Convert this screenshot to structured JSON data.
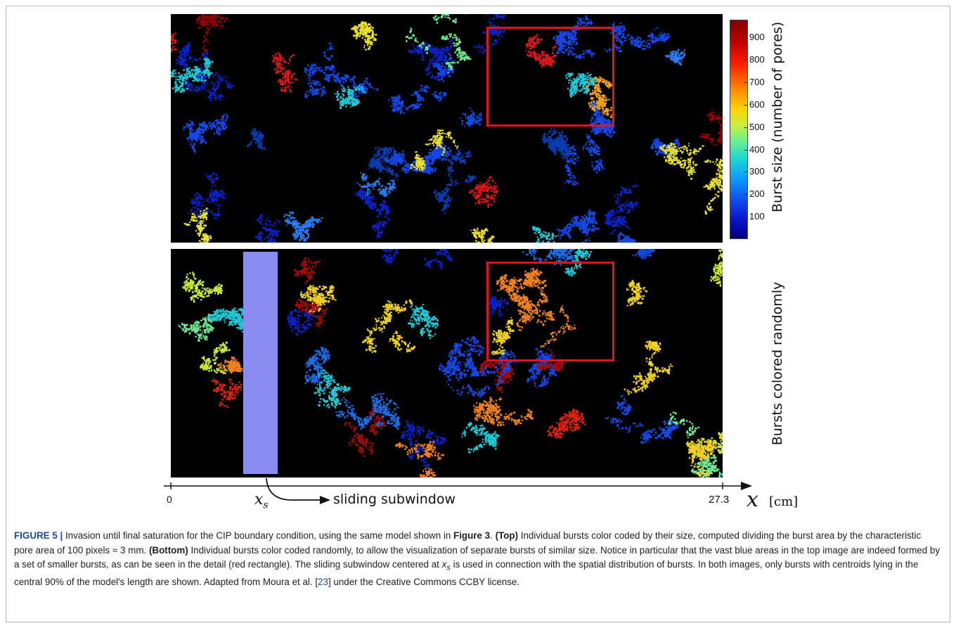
{
  "figure": {
    "colorbar": {
      "label": "Burst size (number of pores)",
      "ticks": [
        "900",
        "800",
        "700",
        "600",
        "500",
        "400",
        "300",
        "200",
        "100"
      ],
      "max": 980,
      "min": 0
    },
    "bottom_label": "Bursts colored randomly",
    "axis": {
      "start": "0",
      "end": "27.3",
      "var": "x",
      "unit": "[cm]",
      "subwindow_var": "x",
      "subwindow_sub": "s",
      "subwindow_label": "sliding subwindow"
    },
    "colors": {
      "detail_rect": "#e0141c",
      "subwindow": "#8a8cf0",
      "caption_label": "#1e4a9c"
    }
  },
  "caption": {
    "label": "FIGURE 5 |",
    "t1": " Invasion until final saturation for the CIP boundary condition, using the same model shown in ",
    "fig3": "Figure 3",
    "t2": ". ",
    "top": "(Top)",
    "t3": " Individual bursts color coded by their size, computed dividing the burst area by the characteristic pore area of 100 pixels ≈ 3 mm. ",
    "bottom": "(Bottom)",
    "t4": " Individual bursts color coded randomly, to allow the visualization of separate bursts of similar size. Notice in particular that the vast blue areas in the top image are indeed formed by a set of smaller bursts, as can be seen in the detail (red rectangle). The sliding subwindow centered at ",
    "xs_x": "x",
    "xs_s": "s",
    "t5": " is used in connection with the spatial distribution of bursts. In both images, only bursts with centroids lying in the central 90% of the model's length are shown. Adapted from Moura et al. [",
    "ref": "23",
    "t6": "] under the Creative Commons CCBY license."
  }
}
